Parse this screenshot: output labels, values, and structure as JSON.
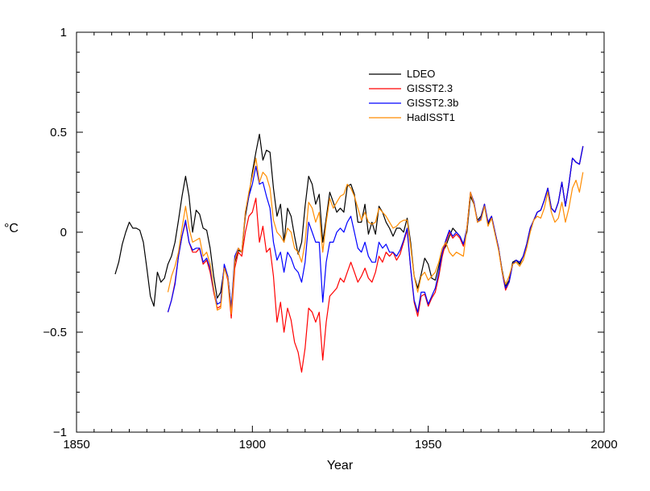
{
  "chart_data": {
    "type": "line",
    "title": "",
    "xlabel": "Year",
    "ylabel": "°C",
    "xlim": [
      1850,
      2000
    ],
    "ylim": [
      -1,
      1
    ],
    "x_ticks": [
      1850,
      1900,
      1950,
      2000
    ],
    "y_ticks": [
      -1,
      -0.5,
      0,
      0.5,
      1
    ],
    "x_tick_labels": [
      "1850",
      "1900",
      "1950",
      "2000"
    ],
    "y_tick_labels": [
      "−1",
      "−0.5",
      "0",
      "0.5",
      "1"
    ],
    "grid": false,
    "legend_position": "top-right",
    "series": [
      {
        "name": "LDEO",
        "color": "#000000",
        "x": [
          1861,
          1862,
          1863,
          1864,
          1865,
          1866,
          1867,
          1868,
          1869,
          1870,
          1871,
          1872,
          1873,
          1874,
          1875,
          1876,
          1877,
          1878,
          1879,
          1880,
          1881,
          1882,
          1883,
          1884,
          1885,
          1886,
          1887,
          1888,
          1889,
          1890,
          1891,
          1892,
          1893,
          1894,
          1895,
          1896,
          1897,
          1898,
          1899,
          1900,
          1901,
          1902,
          1903,
          1904,
          1905,
          1906,
          1907,
          1908,
          1909,
          1910,
          1911,
          1912,
          1913,
          1914,
          1915,
          1916,
          1917,
          1918,
          1919,
          1920,
          1921,
          1922,
          1923,
          1924,
          1925,
          1926,
          1927,
          1928,
          1929,
          1930,
          1931,
          1932,
          1933,
          1934,
          1935,
          1936,
          1937,
          1938,
          1939,
          1940,
          1941,
          1942,
          1943,
          1944,
          1945,
          1946,
          1947,
          1948,
          1949,
          1950,
          1951,
          1952,
          1953,
          1954,
          1955,
          1956,
          1957,
          1958,
          1959,
          1960,
          1961,
          1962,
          1963,
          1964,
          1965,
          1966,
          1967,
          1968,
          1969,
          1970,
          1971,
          1972,
          1973,
          1974,
          1975,
          1976,
          1977,
          1978,
          1979,
          1980,
          1981,
          1982,
          1983,
          1984,
          1985,
          1986,
          1987,
          1988,
          1989,
          1990,
          1991,
          1992,
          1993,
          1994
        ],
        "values": [
          -0.21,
          -0.15,
          -0.06,
          0.0,
          0.05,
          0.02,
          0.02,
          0.01,
          -0.05,
          -0.18,
          -0.32,
          -0.37,
          -0.2,
          -0.25,
          -0.23,
          -0.16,
          -0.12,
          -0.05,
          0.06,
          0.18,
          0.28,
          0.18,
          0.0,
          0.11,
          0.09,
          0.02,
          0.01,
          -0.08,
          -0.22,
          -0.33,
          -0.3,
          -0.18,
          -0.22,
          -0.38,
          -0.15,
          -0.09,
          -0.1,
          0.08,
          0.18,
          0.3,
          0.4,
          0.49,
          0.36,
          0.41,
          0.4,
          0.22,
          0.08,
          0.14,
          -0.05,
          0.12,
          0.08,
          -0.02,
          -0.11,
          -0.05,
          0.13,
          0.28,
          0.24,
          0.14,
          0.19,
          -0.05,
          0.07,
          0.2,
          0.15,
          0.1,
          0.12,
          0.1,
          0.23,
          0.24,
          0.19,
          0.05,
          0.05,
          0.14,
          -0.01,
          0.05,
          -0.01,
          0.13,
          0.1,
          0.05,
          0.02,
          -0.02,
          0.02,
          0.02,
          0.0,
          0.07,
          -0.05,
          -0.22,
          -0.28,
          -0.21,
          -0.13,
          -0.16,
          -0.23,
          -0.24,
          -0.17,
          -0.1,
          -0.07,
          -0.02,
          0.02,
          0.0,
          -0.02,
          -0.06,
          0.0,
          0.18,
          0.14,
          0.06,
          0.08,
          0.14,
          0.04,
          0.08,
          0.0,
          -0.08,
          -0.19,
          -0.27,
          -0.24,
          -0.15,
          -0.14,
          -0.16,
          -0.12,
          -0.06,
          0.02,
          0.06,
          0.1,
          0.11,
          0.16,
          0.22,
          0.12,
          0.1,
          0.15,
          0.25,
          0.13,
          0.24,
          0.37,
          0.35,
          0.34,
          0.43
        ]
      },
      {
        "name": "GISST2.3",
        "color": "#ff0000",
        "x": [
          1876,
          1877,
          1878,
          1879,
          1880,
          1881,
          1882,
          1883,
          1884,
          1885,
          1886,
          1887,
          1888,
          1889,
          1890,
          1891,
          1892,
          1893,
          1894,
          1895,
          1896,
          1897,
          1898,
          1899,
          1900,
          1901,
          1902,
          1903,
          1904,
          1905,
          1906,
          1907,
          1908,
          1909,
          1910,
          1911,
          1912,
          1913,
          1914,
          1915,
          1916,
          1917,
          1918,
          1919,
          1920,
          1921,
          1922,
          1923,
          1924,
          1925,
          1926,
          1927,
          1928,
          1929,
          1930,
          1931,
          1932,
          1933,
          1934,
          1935,
          1936,
          1937,
          1938,
          1939,
          1940,
          1941,
          1942,
          1943,
          1944,
          1945,
          1946,
          1947,
          1948,
          1949,
          1950,
          1951,
          1952,
          1953,
          1954,
          1955,
          1956,
          1957,
          1958,
          1959,
          1960,
          1961,
          1962,
          1963,
          1964,
          1965,
          1966,
          1967,
          1968,
          1969,
          1970,
          1971,
          1972,
          1973,
          1974,
          1975,
          1976,
          1977,
          1978,
          1979,
          1980,
          1981,
          1982,
          1983,
          1984,
          1985,
          1986,
          1987,
          1988,
          1989,
          1990,
          1991,
          1992,
          1993,
          1994
        ],
        "values": [
          -0.4,
          -0.34,
          -0.25,
          -0.12,
          -0.02,
          0.05,
          -0.05,
          -0.1,
          -0.1,
          -0.08,
          -0.16,
          -0.14,
          -0.2,
          -0.3,
          -0.38,
          -0.37,
          -0.17,
          -0.24,
          -0.43,
          -0.18,
          -0.1,
          -0.12,
          0.0,
          0.08,
          0.1,
          0.17,
          -0.05,
          0.03,
          -0.1,
          -0.08,
          -0.22,
          -0.45,
          -0.35,
          -0.5,
          -0.38,
          -0.44,
          -0.55,
          -0.6,
          -0.7,
          -0.58,
          -0.38,
          -0.4,
          -0.45,
          -0.4,
          -0.64,
          -0.45,
          -0.32,
          -0.3,
          -0.28,
          -0.23,
          -0.25,
          -0.2,
          -0.15,
          -0.2,
          -0.25,
          -0.22,
          -0.18,
          -0.23,
          -0.25,
          -0.2,
          -0.12,
          -0.15,
          -0.1,
          -0.12,
          -0.1,
          -0.14,
          -0.11,
          -0.05,
          0.01,
          -0.18,
          -0.35,
          -0.42,
          -0.32,
          -0.31,
          -0.37,
          -0.33,
          -0.3,
          -0.22,
          -0.12,
          -0.05,
          0.0,
          -0.03,
          -0.01,
          -0.03,
          -0.07,
          0.02,
          0.2,
          0.15,
          0.05,
          0.07,
          0.14,
          0.05,
          0.08,
          0.0,
          -0.08,
          -0.2,
          -0.29,
          -0.25,
          -0.16,
          -0.14,
          -0.15,
          -0.12,
          -0.06,
          0.02,
          0.06,
          0.1,
          0.11,
          0.16,
          0.22,
          0.12,
          0.1,
          0.15,
          0.25,
          0.13,
          0.24,
          0.37,
          0.35,
          0.34,
          0.43
        ]
      },
      {
        "name": "GISST2.3b",
        "color": "#0000ff",
        "x": [
          1876,
          1877,
          1878,
          1879,
          1880,
          1881,
          1882,
          1883,
          1884,
          1885,
          1886,
          1887,
          1888,
          1889,
          1890,
          1891,
          1892,
          1893,
          1894,
          1895,
          1896,
          1897,
          1898,
          1899,
          1900,
          1901,
          1902,
          1903,
          1904,
          1905,
          1906,
          1907,
          1908,
          1909,
          1910,
          1911,
          1912,
          1913,
          1914,
          1915,
          1916,
          1917,
          1918,
          1919,
          1920,
          1921,
          1922,
          1923,
          1924,
          1925,
          1926,
          1927,
          1928,
          1929,
          1930,
          1931,
          1932,
          1933,
          1934,
          1935,
          1936,
          1937,
          1938,
          1939,
          1940,
          1941,
          1942,
          1943,
          1944,
          1945,
          1946,
          1947,
          1948,
          1949,
          1950,
          1951,
          1952,
          1953,
          1954,
          1955,
          1956,
          1957,
          1958,
          1959,
          1960,
          1961,
          1962,
          1963,
          1964,
          1965,
          1966,
          1967,
          1968,
          1969,
          1970,
          1971,
          1972,
          1973,
          1974,
          1975,
          1976,
          1977,
          1978,
          1979,
          1980,
          1981,
          1982,
          1983,
          1984,
          1985,
          1986,
          1987,
          1988,
          1989,
          1990,
          1991,
          1992,
          1993,
          1994
        ],
        "values": [
          -0.4,
          -0.34,
          -0.26,
          -0.12,
          -0.02,
          0.06,
          -0.05,
          -0.09,
          -0.08,
          -0.08,
          -0.15,
          -0.13,
          -0.18,
          -0.29,
          -0.36,
          -0.35,
          -0.16,
          -0.22,
          -0.38,
          -0.12,
          -0.08,
          -0.1,
          0.1,
          0.18,
          0.24,
          0.33,
          0.24,
          0.25,
          0.18,
          0.12,
          -0.05,
          -0.14,
          -0.1,
          -0.2,
          -0.1,
          -0.13,
          -0.18,
          -0.2,
          -0.25,
          -0.15,
          0.05,
          0.0,
          -0.05,
          -0.05,
          -0.35,
          -0.15,
          -0.05,
          -0.05,
          0.0,
          0.02,
          0.0,
          0.05,
          0.08,
          0.0,
          -0.08,
          -0.1,
          -0.05,
          -0.12,
          -0.15,
          -0.15,
          -0.05,
          -0.08,
          -0.06,
          -0.1,
          -0.1,
          -0.12,
          -0.09,
          -0.04,
          0.02,
          -0.18,
          -0.34,
          -0.4,
          -0.3,
          -0.3,
          -0.36,
          -0.32,
          -0.28,
          -0.2,
          -0.1,
          -0.04,
          0.01,
          -0.02,
          0.0,
          -0.02,
          -0.06,
          0.02,
          0.2,
          0.15,
          0.05,
          0.07,
          0.14,
          0.05,
          0.08,
          0.0,
          -0.08,
          -0.2,
          -0.28,
          -0.25,
          -0.16,
          -0.14,
          -0.15,
          -0.12,
          -0.06,
          0.02,
          0.06,
          0.1,
          0.11,
          0.16,
          0.22,
          0.12,
          0.1,
          0.15,
          0.25,
          0.13,
          0.24,
          0.37,
          0.35,
          0.34,
          0.43
        ]
      },
      {
        "name": "HadISST1",
        "color": "#ff8c00",
        "x": [
          1876,
          1877,
          1878,
          1879,
          1880,
          1881,
          1882,
          1883,
          1884,
          1885,
          1886,
          1887,
          1888,
          1889,
          1890,
          1891,
          1892,
          1893,
          1894,
          1895,
          1896,
          1897,
          1898,
          1899,
          1900,
          1901,
          1902,
          1903,
          1904,
          1905,
          1906,
          1907,
          1908,
          1909,
          1910,
          1911,
          1912,
          1913,
          1914,
          1915,
          1916,
          1917,
          1918,
          1919,
          1920,
          1921,
          1922,
          1923,
          1924,
          1925,
          1926,
          1927,
          1928,
          1929,
          1930,
          1931,
          1932,
          1933,
          1934,
          1935,
          1936,
          1937,
          1938,
          1939,
          1940,
          1941,
          1942,
          1943,
          1944,
          1945,
          1946,
          1947,
          1948,
          1949,
          1950,
          1951,
          1952,
          1953,
          1954,
          1955,
          1956,
          1957,
          1958,
          1959,
          1960,
          1961,
          1962,
          1963,
          1964,
          1965,
          1966,
          1967,
          1968,
          1969,
          1970,
          1971,
          1972,
          1973,
          1974,
          1975,
          1976,
          1977,
          1978,
          1979,
          1980,
          1981,
          1982,
          1983,
          1984,
          1985,
          1986,
          1987,
          1988,
          1989,
          1990,
          1991,
          1992,
          1993,
          1994
        ],
        "values": [
          -0.3,
          -0.22,
          -0.17,
          -0.1,
          0.02,
          0.13,
          0.02,
          -0.05,
          -0.04,
          -0.03,
          -0.12,
          -0.1,
          -0.16,
          -0.28,
          -0.39,
          -0.38,
          -0.18,
          -0.23,
          -0.41,
          -0.14,
          -0.08,
          -0.1,
          0.1,
          0.2,
          0.28,
          0.37,
          0.25,
          0.3,
          0.28,
          0.22,
          0.06,
          0.0,
          -0.02,
          -0.05,
          0.02,
          0.0,
          -0.08,
          -0.1,
          -0.15,
          -0.05,
          0.15,
          0.12,
          0.05,
          0.1,
          -0.1,
          0.05,
          0.17,
          0.12,
          0.15,
          0.18,
          0.19,
          0.24,
          0.22,
          0.18,
          0.12,
          0.06,
          0.1,
          0.05,
          0.04,
          0.05,
          0.12,
          0.1,
          0.08,
          0.05,
          0.02,
          0.03,
          0.05,
          0.06,
          0.06,
          -0.07,
          -0.22,
          -0.3,
          -0.22,
          -0.2,
          -0.24,
          -0.22,
          -0.2,
          -0.15,
          -0.08,
          -0.05,
          -0.1,
          -0.12,
          -0.1,
          -0.11,
          -0.12,
          0.02,
          0.2,
          0.14,
          0.05,
          0.06,
          0.13,
          0.03,
          0.07,
          -0.01,
          -0.09,
          -0.2,
          -0.26,
          -0.22,
          -0.16,
          -0.15,
          -0.17,
          -0.14,
          -0.08,
          0.0,
          0.06,
          0.08,
          0.07,
          0.12,
          0.2,
          0.1,
          0.05,
          0.07,
          0.15,
          0.05,
          0.12,
          0.22,
          0.26,
          0.2,
          0.3
        ]
      }
    ]
  }
}
